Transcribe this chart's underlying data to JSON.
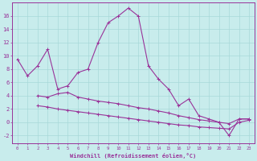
{
  "xlabel": "Windchill (Refroidissement éolien,°C)",
  "xlim": [
    -0.5,
    23.5
  ],
  "ylim": [
    -3.2,
    18.0
  ],
  "yticks": [
    -2,
    0,
    2,
    4,
    6,
    8,
    10,
    12,
    14,
    16
  ],
  "xticks": [
    0,
    1,
    2,
    3,
    4,
    5,
    6,
    7,
    8,
    9,
    10,
    11,
    12,
    13,
    14,
    15,
    16,
    17,
    18,
    19,
    20,
    21,
    22,
    23
  ],
  "xtick_labels": [
    "0",
    "1",
    "2",
    "3",
    "4",
    "5",
    "6",
    "7",
    "8",
    "9",
    "10",
    "11",
    "12",
    "13",
    "14",
    "15",
    "16",
    "17",
    "18",
    "19",
    "20",
    "21",
    "22",
    "23"
  ],
  "bg_color": "#c8ecec",
  "grid_color": "#a8d8d8",
  "line_color": "#993399",
  "curve1_x": [
    0,
    1,
    2,
    3,
    4,
    5,
    6,
    7,
    8,
    9,
    10,
    11,
    12,
    13,
    14,
    15,
    16,
    17,
    18,
    19,
    20,
    21,
    22,
    23
  ],
  "curve1_y": [
    9.5,
    7.0,
    8.5,
    11.0,
    5.0,
    5.5,
    7.5,
    8.0,
    12.0,
    15.0,
    16.0,
    17.2,
    16.0,
    8.5,
    6.5,
    5.0,
    2.5,
    3.5,
    1.0,
    0.5,
    0.0,
    -2.0,
    0.5,
    0.5
  ],
  "curve2_x": [
    2,
    3,
    4,
    5,
    6,
    7,
    8,
    9,
    10,
    11,
    12,
    13,
    14,
    15,
    16,
    17,
    18,
    19,
    20,
    21,
    22,
    23
  ],
  "curve2_y": [
    4.0,
    3.8,
    4.3,
    4.5,
    3.8,
    3.5,
    3.2,
    3.0,
    2.8,
    2.5,
    2.2,
    2.0,
    1.7,
    1.4,
    1.0,
    0.7,
    0.4,
    0.2,
    0.0,
    -0.2,
    0.5,
    0.5
  ],
  "curve3_x": [
    2,
    3,
    4,
    5,
    6,
    7,
    8,
    9,
    10,
    11,
    12,
    13,
    14,
    15,
    16,
    17,
    18,
    19,
    20,
    21,
    22,
    23
  ],
  "curve3_y": [
    2.5,
    2.3,
    2.0,
    1.8,
    1.6,
    1.4,
    1.2,
    1.0,
    0.8,
    0.6,
    0.4,
    0.2,
    0.0,
    -0.2,
    -0.4,
    -0.5,
    -0.7,
    -0.8,
    -0.9,
    -1.0,
    0.0,
    0.3
  ]
}
